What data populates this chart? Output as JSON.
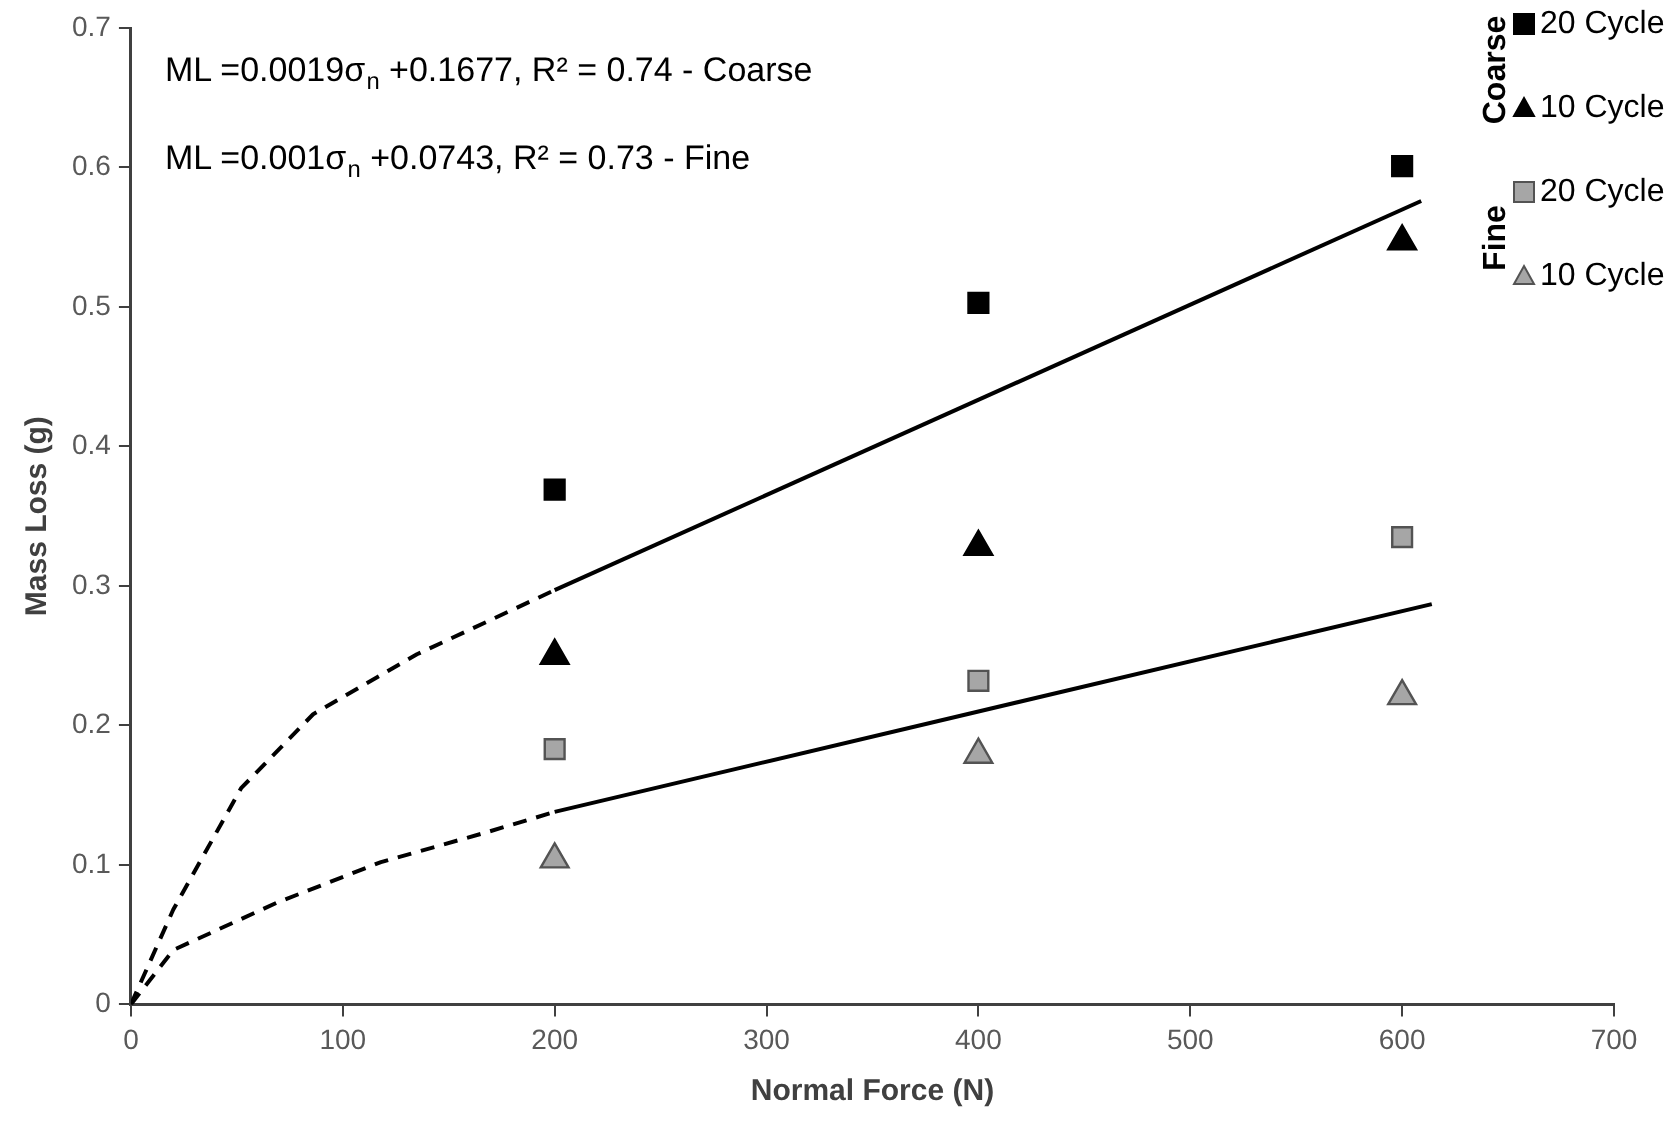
{
  "chart_data": {
    "type": "scatter",
    "xlabel": "Normal Force (N)",
    "ylabel": "Mass Loss (g)",
    "xlim": [
      0,
      700
    ],
    "xticks": [
      0,
      100,
      200,
      300,
      400,
      500,
      600,
      700
    ],
    "ylim": [
      0,
      0.7
    ],
    "yticks": [
      0,
      0.1,
      0.2,
      0.3,
      0.4,
      0.5,
      0.6,
      0.7
    ],
    "grid": false,
    "legend": "top right",
    "annotations": [
      "ML =0.0019σ$_{n}$ +0.1677, R² = 0.74 - Coarse",
      "ML =0.001σ$_{n}$ +0.0743, R² = 0.73 - Fine",
      "Coarse",
      "Fine"
    ],
    "x": [
      200,
      400,
      600
    ],
    "series": [
      {
        "name": "20 Cycle",
        "marker": "square",
        "color": "#000000",
        "values": [
          0.369,
          0.503,
          0.601
        ]
      },
      {
        "name": "10 Cycle",
        "marker": "triangle",
        "color": "#000000",
        "values": [
          0.25,
          0.328,
          0.547
        ]
      },
      {
        "name": "20 Cycle",
        "marker": "square",
        "color": "#a6a6a6",
        "values": [
          0.183,
          0.232,
          0.335
        ]
      },
      {
        "name": "10 Cycle",
        "marker": "triangle",
        "color": "#a6a6a6",
        "values": [
          0.104,
          0.179,
          0.221
        ]
      },
      {
        "type": "line",
        "marker": "none",
        "line_style": "solid",
        "color": "#000000",
        "x": [
          200,
          609
        ],
        "values": [
          0.297,
          0.576
        ]
      },
      {
        "type": "line",
        "marker": "none",
        "line_style": "solid",
        "color": "#000000",
        "x": [
          200,
          614
        ],
        "values": [
          0.138,
          0.287
        ]
      },
      {
        "type": "line",
        "marker": "none",
        "line_style": "dashed",
        "color": "#000000",
        "x": [
          0,
          20,
          52,
          86,
          135,
          200
        ],
        "values": [
          0,
          0.068,
          0.155,
          0.208,
          0.251,
          0.297
        ]
      },
      {
        "type": "line",
        "marker": "none",
        "line_style": "dashed",
        "color": "#000000",
        "x": [
          0,
          20,
          69,
          118,
          167,
          200
        ],
        "values": [
          0,
          0.039,
          0.073,
          0.102,
          0.123,
          0.138
        ]
      }
    ]
  }
}
